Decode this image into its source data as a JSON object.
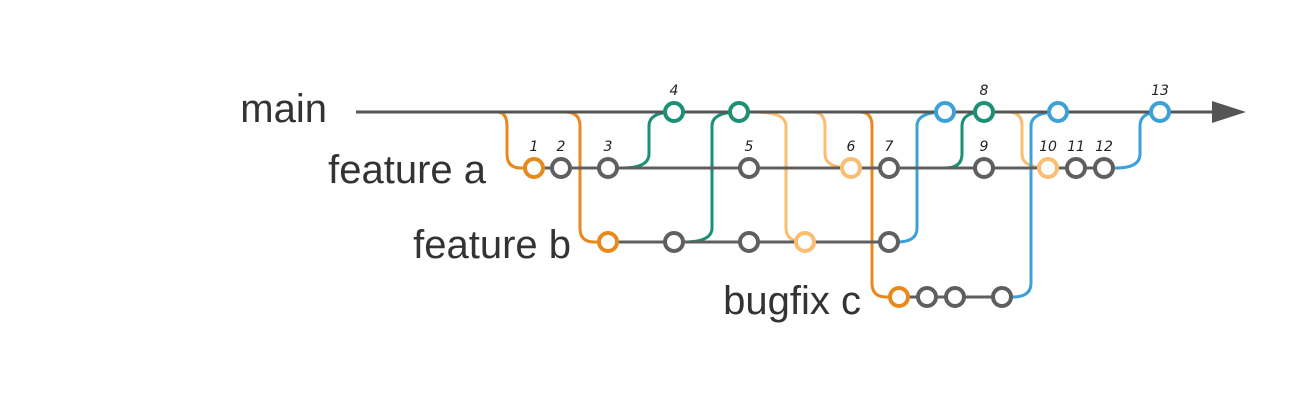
{
  "diagram": {
    "colors": {
      "main": "#555555",
      "gray": "#5f5f5f",
      "orange": "#e8891c",
      "light_orange": "#fbbd70",
      "green": "#1a9175",
      "blue": "#3ba1d8"
    },
    "branches": [
      {
        "id": "main",
        "label": "main"
      },
      {
        "id": "feature-a",
        "label": "feature a"
      },
      {
        "id": "feature-b",
        "label": "feature b"
      },
      {
        "id": "bugfix-c",
        "label": "bugfix c"
      }
    ],
    "commit_numbers": [
      "1",
      "2",
      "3",
      "4",
      "5",
      "6",
      "7",
      "8",
      "9",
      "10",
      "11",
      "12",
      "13"
    ]
  }
}
